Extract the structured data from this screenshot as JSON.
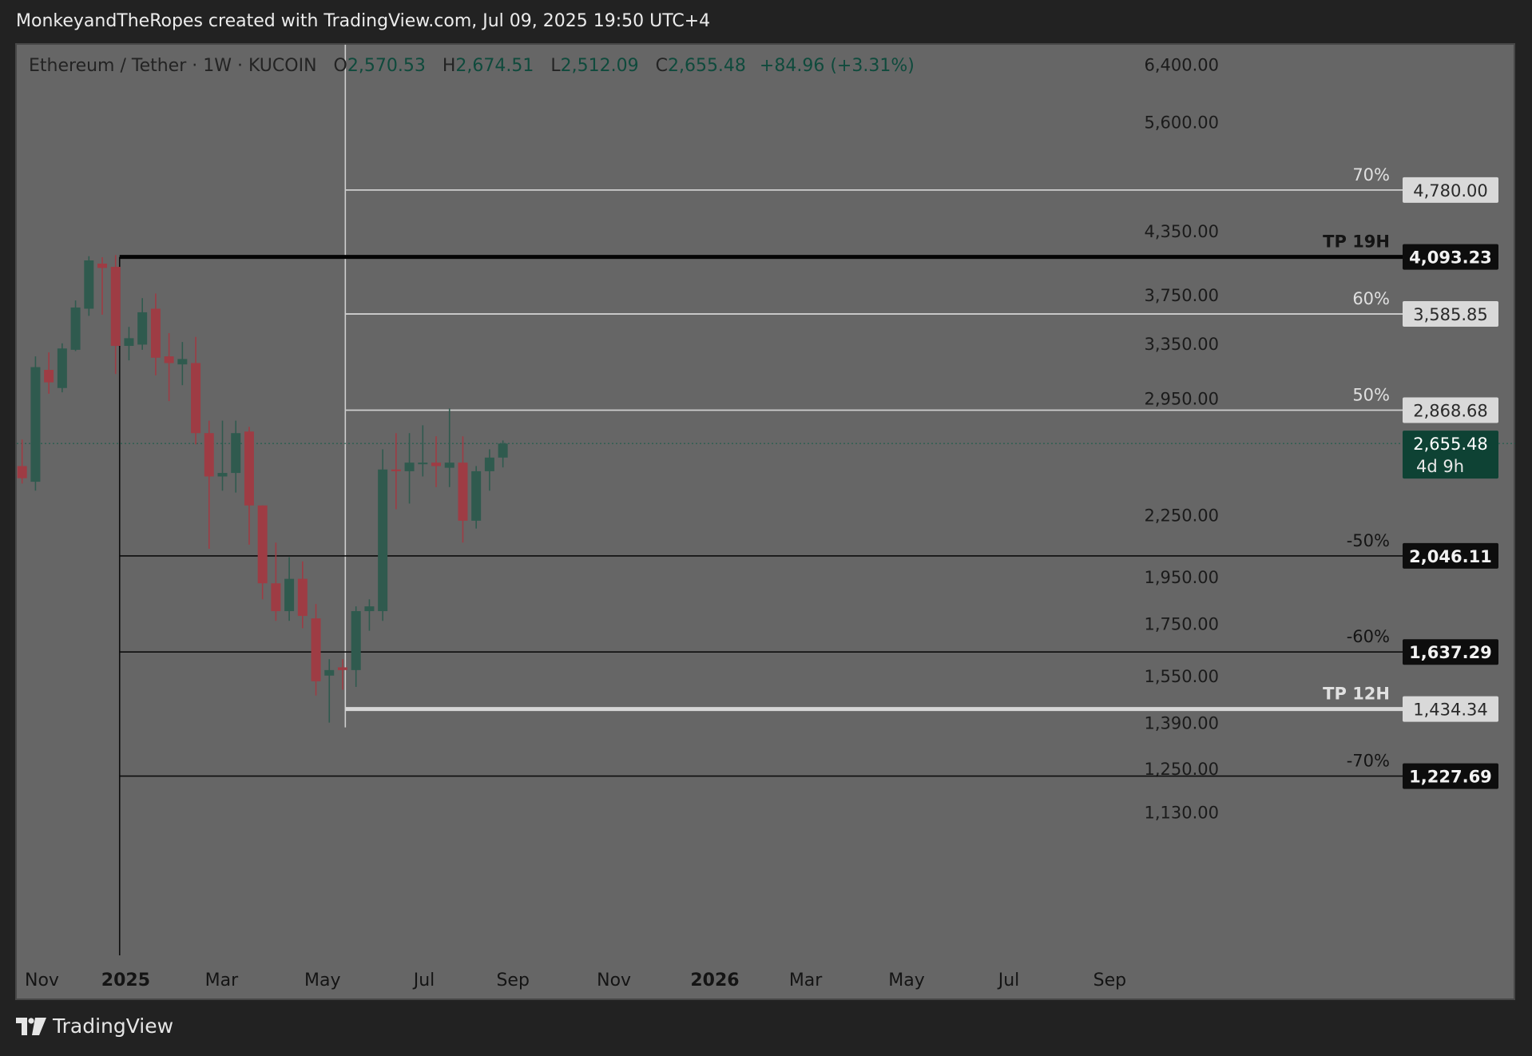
{
  "header": {
    "title": "MonkeyandTheRopes created with TradingView.com, Jul 09, 2025 19:50 UTC+4"
  },
  "footer": {
    "brand": "TradingView",
    "logo_icon": "tradingview-logo-icon"
  },
  "legend": {
    "symbol": "Ethereum / Tether · 1W · KUCOIN",
    "open_label": "O",
    "open": "2,570.53",
    "high_label": "H",
    "high": "2,674.51",
    "low_label": "L",
    "low": "2,512.09",
    "close_label": "C",
    "close": "2,655.48",
    "change": "+84.96 (+3.31%)"
  },
  "colors": {
    "background": "#222222",
    "plot_background": "#666666",
    "up_candle": "#2f5a4e",
    "down_candle": "#9e3c44",
    "level_light": "#cfcfcf",
    "level_dark": "#0c0c0c",
    "current_price_box": "#0e4234"
  },
  "chart_data": {
    "type": "candlestick",
    "symbol": "Ethereum / Tether",
    "interval": "1W",
    "exchange": "KUCOIN",
    "y_scale": "log",
    "ylim": [
      1050,
      6500
    ],
    "x_tick_labels": [
      {
        "label": "Nov",
        "bold": false
      },
      {
        "label": "2025",
        "bold": true
      },
      {
        "label": "Mar",
        "bold": false
      },
      {
        "label": "May",
        "bold": false
      },
      {
        "label": "Jul",
        "bold": false
      },
      {
        "label": "Sep",
        "bold": false
      },
      {
        "label": "Nov",
        "bold": false
      },
      {
        "label": "2026",
        "bold": true
      },
      {
        "label": "Mar",
        "bold": false
      },
      {
        "label": "May",
        "bold": false
      },
      {
        "label": "Jul",
        "bold": false
      },
      {
        "label": "Sep",
        "bold": false
      }
    ],
    "y_tick_labels": [
      "6,400.00",
      "5,600.00",
      "4,350.00",
      "3,750.00",
      "3,350.00",
      "2,950.00",
      "2,250.00",
      "1,950.00",
      "1,750.00",
      "1,550.00",
      "1,390.00",
      "1,250.00",
      "1,130.00"
    ],
    "candles": [
      {
        "o": 2520,
        "h": 2680,
        "l": 2420,
        "c": 2450
      },
      {
        "o": 2430,
        "h": 3250,
        "l": 2380,
        "c": 3170
      },
      {
        "o": 3150,
        "h": 3280,
        "l": 2980,
        "c": 3060
      },
      {
        "o": 3020,
        "h": 3350,
        "l": 2990,
        "c": 3310
      },
      {
        "o": 3300,
        "h": 3700,
        "l": 3290,
        "c": 3640
      },
      {
        "o": 3630,
        "h": 4100,
        "l": 3570,
        "c": 4060
      },
      {
        "o": 4030,
        "h": 4090,
        "l": 3580,
        "c": 3990
      },
      {
        "o": 4000,
        "h": 4110,
        "l": 3120,
        "c": 3330
      },
      {
        "o": 3330,
        "h": 3480,
        "l": 3220,
        "c": 3390
      },
      {
        "o": 3340,
        "h": 3720,
        "l": 3300,
        "c": 3600
      },
      {
        "o": 3630,
        "h": 3760,
        "l": 3110,
        "c": 3240
      },
      {
        "o": 3250,
        "h": 3430,
        "l": 2930,
        "c": 3200
      },
      {
        "o": 3190,
        "h": 3360,
        "l": 3040,
        "c": 3230
      },
      {
        "o": 3200,
        "h": 3400,
        "l": 2650,
        "c": 2720
      },
      {
        "o": 2720,
        "h": 2800,
        "l": 2080,
        "c": 2460
      },
      {
        "o": 2460,
        "h": 2800,
        "l": 2380,
        "c": 2480
      },
      {
        "o": 2480,
        "h": 2800,
        "l": 2370,
        "c": 2720
      },
      {
        "o": 2730,
        "h": 2760,
        "l": 2100,
        "c": 2300
      },
      {
        "o": 2300,
        "h": 2300,
        "l": 1850,
        "c": 1920
      },
      {
        "o": 1920,
        "h": 2110,
        "l": 1760,
        "c": 1800
      },
      {
        "o": 1800,
        "h": 2040,
        "l": 1760,
        "c": 1940
      },
      {
        "o": 1940,
        "h": 2020,
        "l": 1730,
        "c": 1780
      },
      {
        "o": 1770,
        "h": 1830,
        "l": 1480,
        "c": 1530
      },
      {
        "o": 1550,
        "h": 1610,
        "l": 1390,
        "c": 1570
      },
      {
        "o": 1580,
        "h": 1610,
        "l": 1500,
        "c": 1570
      },
      {
        "o": 1570,
        "h": 1820,
        "l": 1510,
        "c": 1800
      },
      {
        "o": 1800,
        "h": 1850,
        "l": 1720,
        "c": 1820
      },
      {
        "o": 1800,
        "h": 2620,
        "l": 1760,
        "c": 2500
      },
      {
        "o": 2500,
        "h": 2720,
        "l": 2280,
        "c": 2490
      },
      {
        "o": 2490,
        "h": 2720,
        "l": 2310,
        "c": 2540
      },
      {
        "o": 2540,
        "h": 2770,
        "l": 2460,
        "c": 2540
      },
      {
        "o": 2540,
        "h": 2700,
        "l": 2400,
        "c": 2520
      },
      {
        "o": 2510,
        "h": 2880,
        "l": 2400,
        "c": 2540
      },
      {
        "o": 2540,
        "h": 2700,
        "l": 2110,
        "c": 2220
      },
      {
        "o": 2220,
        "h": 2520,
        "l": 2180,
        "c": 2490
      },
      {
        "o": 2490,
        "h": 2620,
        "l": 2380,
        "c": 2570
      },
      {
        "o": 2570,
        "h": 2674,
        "l": 2512,
        "c": 2655
      }
    ],
    "levels": [
      {
        "label": "70%",
        "price_label": "4,780.00",
        "value": 4780.0,
        "style": "light",
        "start_index": 24.2
      },
      {
        "label": "TP 19H",
        "price_label": "4,093.23",
        "value": 4093.23,
        "style": "thick-dark",
        "start_index": 7.3
      },
      {
        "label": "60%",
        "price_label": "3,585.85",
        "value": 3585.85,
        "style": "light",
        "start_index": 24.2
      },
      {
        "label": "50%",
        "price_label": "2,868.68",
        "value": 2868.68,
        "style": "light",
        "start_index": 24.2
      },
      {
        "label": "-50%",
        "price_label": "2,046.11",
        "value": 2046.11,
        "style": "dark",
        "start_index": 7.3
      },
      {
        "label": "-60%",
        "price_label": "1,637.29",
        "value": 1637.29,
        "style": "dark",
        "start_index": 7.3
      },
      {
        "label": "TP 12H",
        "price_label": "1,434.34",
        "value": 1434.34,
        "style": "thick-light",
        "start_index": 24.2
      },
      {
        "label": "-70%",
        "price_label": "1,227.69",
        "value": 1227.69,
        "style": "dark",
        "start_index": 7.3
      }
    ],
    "current_price": {
      "value": 2655.48,
      "label": "2,655.48",
      "countdown": "4d 9h"
    },
    "vertical_markers": [
      {
        "index": 7.3,
        "from": 4093.23,
        "style": "dark"
      },
      {
        "index": 24.2,
        "from": 1390,
        "style": "light"
      }
    ]
  }
}
